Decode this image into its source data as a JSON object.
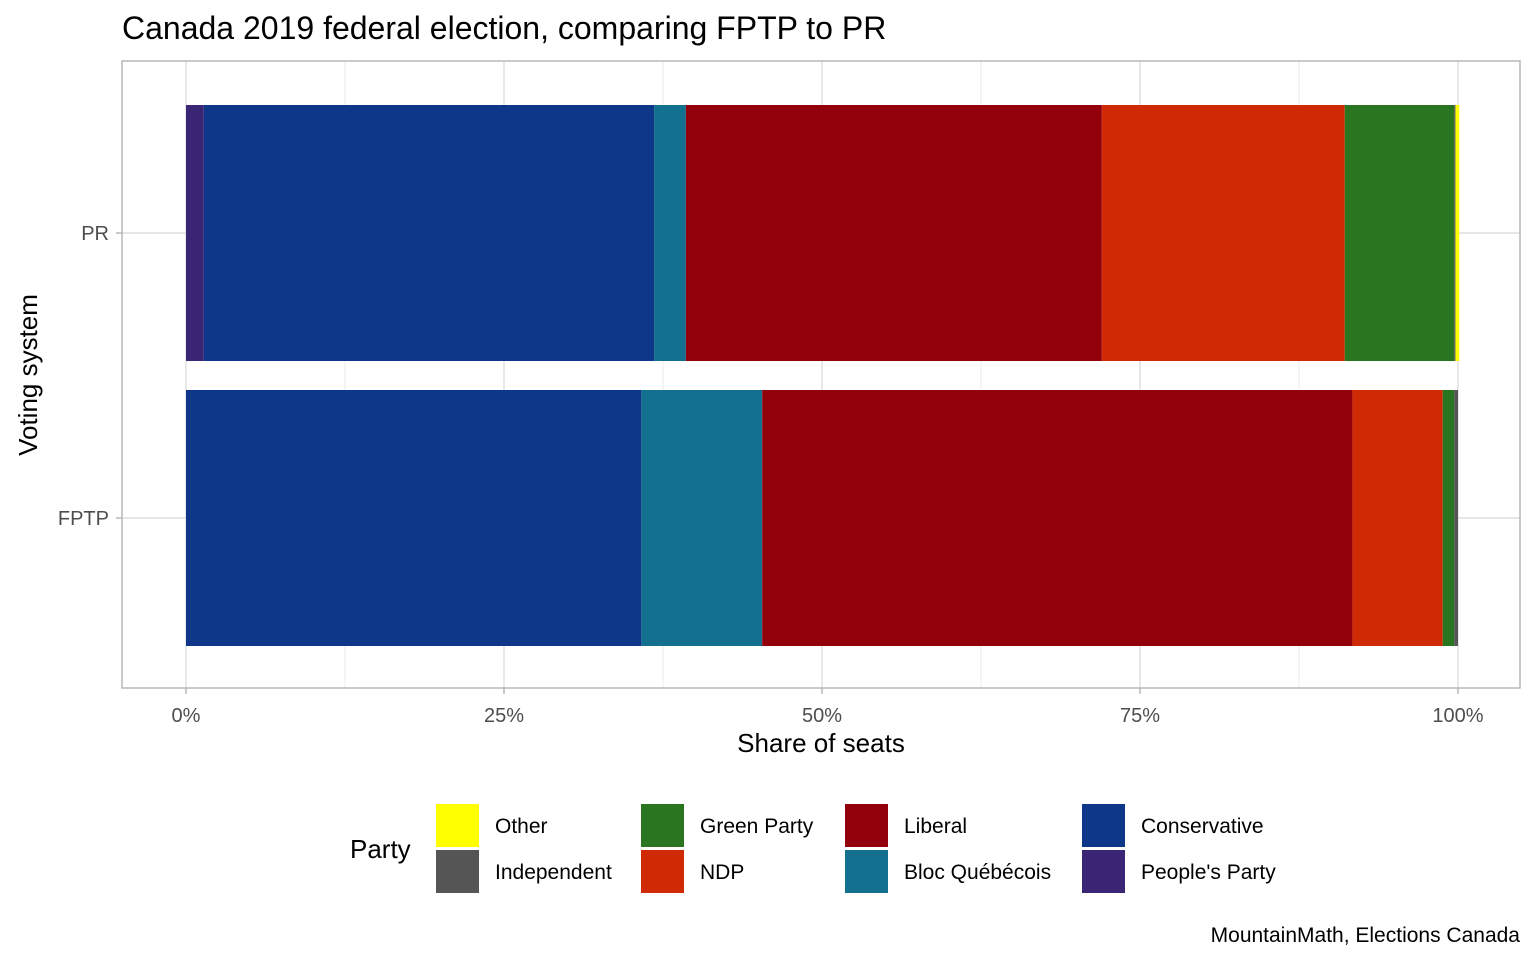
{
  "chart_data": {
    "type": "bar",
    "orientation": "horizontal",
    "stacked": true,
    "title": "Canada 2019 federal election, comparing FPTP to PR",
    "xlabel": "Share of seats",
    "ylabel": "Voting system",
    "categories": [
      "PR",
      "FPTP"
    ],
    "xlim": [
      0,
      1
    ],
    "x_ticks": [
      "0%",
      "25%",
      "50%",
      "75%",
      "100%"
    ],
    "grid": true,
    "caption": "MountainMath, Elections Canada",
    "legend": {
      "title": "Party",
      "placement": "bottom",
      "entries": [
        "Other",
        "Independent",
        "Green Party",
        "NDP",
        "Liberal",
        "Bloc Québécois",
        "Conservative",
        "People's Party"
      ]
    },
    "series": [
      {
        "name": "People's Party",
        "color": "#3b2675",
        "values": [
          0.014,
          0.0
        ]
      },
      {
        "name": "Conservative",
        "color": "#0e378a",
        "values": [
          0.354,
          0.358
        ]
      },
      {
        "name": "Bloc Québécois",
        "color": "#13718f",
        "values": [
          0.025,
          0.095
        ]
      },
      {
        "name": "Liberal",
        "color": "#92000b",
        "values": [
          0.327,
          0.464
        ]
      },
      {
        "name": "NDP",
        "color": "#cf2a04",
        "values": [
          0.191,
          0.071
        ]
      },
      {
        "name": "Green Party",
        "color": "#2a7620",
        "values": [
          0.086,
          0.009
        ]
      },
      {
        "name": "Independent",
        "color": "#555555",
        "values": [
          0.001,
          0.003
        ]
      },
      {
        "name": "Other",
        "color": "#ffff00",
        "values": [
          0.003,
          0.0
        ]
      }
    ]
  }
}
